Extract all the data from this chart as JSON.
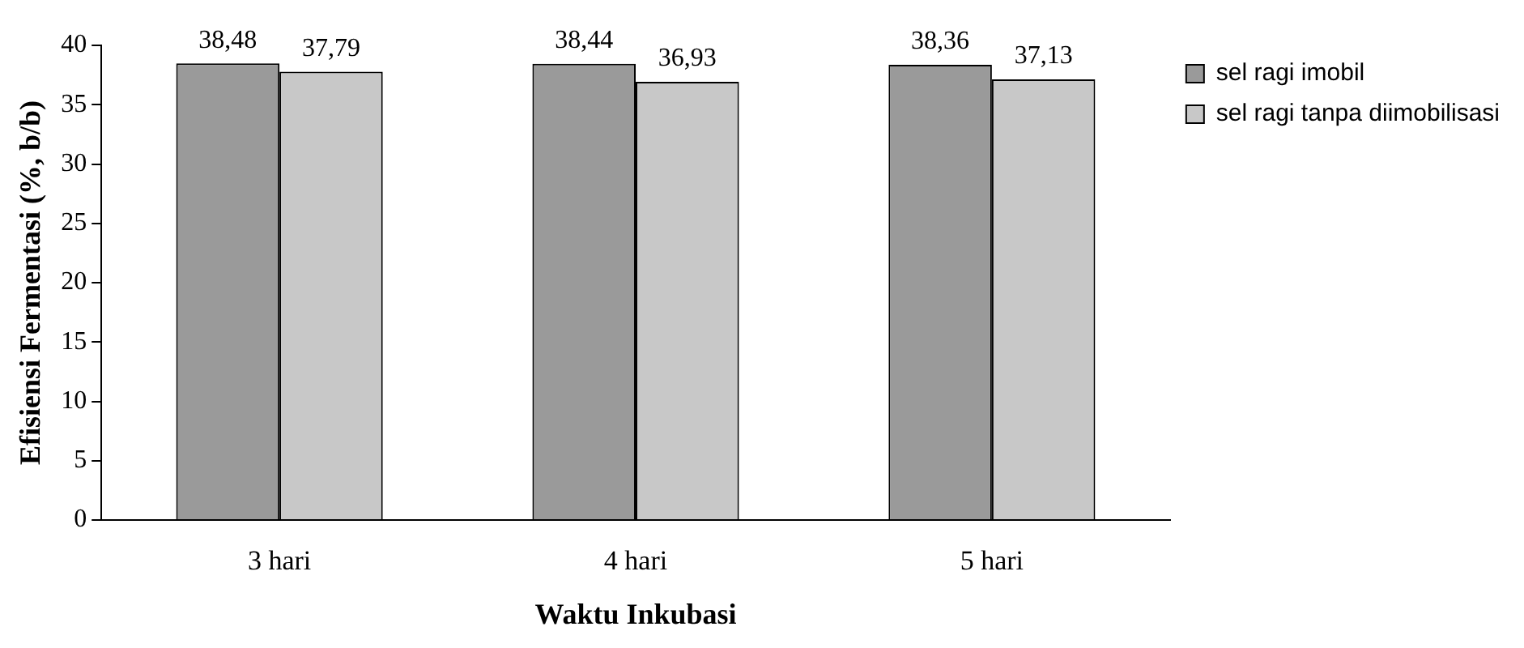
{
  "chart_data": {
    "type": "bar",
    "xlabel": "Waktu Inkubasi",
    "ylabel": "Efisiensi Fermentasi (%, b/b)",
    "categories": [
      "3 hari",
      "4 hari",
      "5 hari"
    ],
    "series": [
      {
        "name": "sel ragi imobil",
        "color": "#9a9a9a",
        "values": [
          38.48,
          38.44,
          38.36
        ],
        "value_labels": [
          "38,48",
          "38,44",
          "38,36"
        ]
      },
      {
        "name": "sel ragi tanpa diimobilisasi",
        "color": "#c8c8c8",
        "values": [
          37.79,
          36.93,
          37.13
        ],
        "value_labels": [
          "37,79",
          "36,93",
          "37,13"
        ]
      }
    ],
    "ylim": [
      0,
      40
    ],
    "yticks": [
      0,
      5,
      10,
      15,
      20,
      25,
      30,
      35,
      40
    ],
    "grid": false,
    "legend": "top right"
  }
}
